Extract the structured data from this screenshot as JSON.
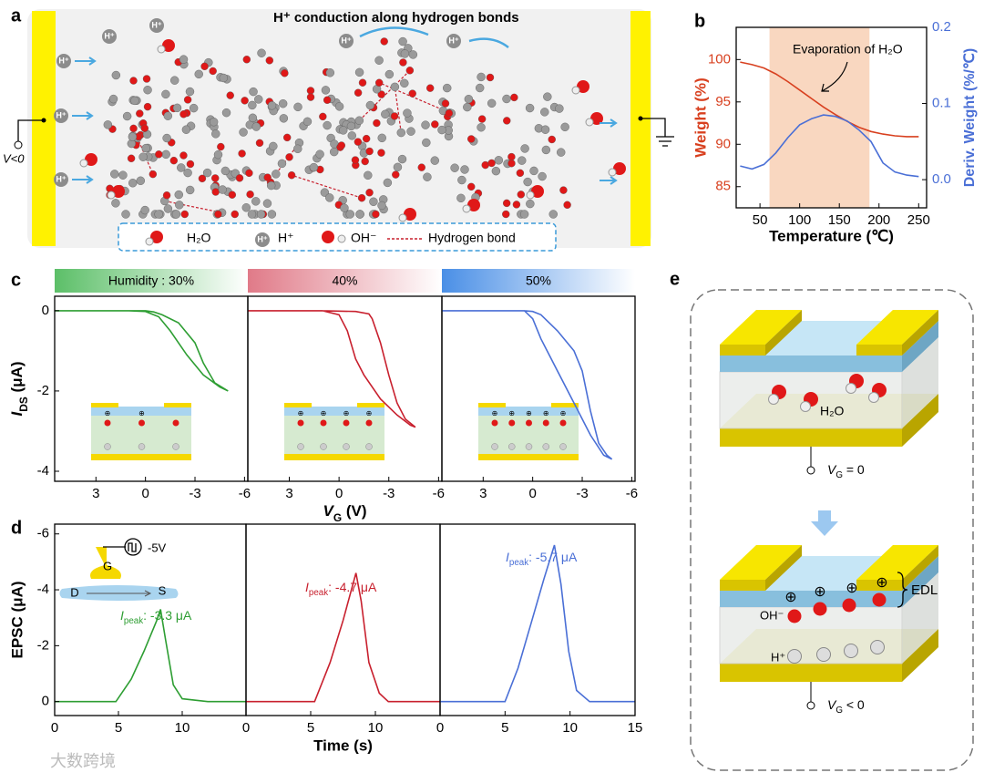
{
  "panel_labels": [
    "a",
    "b",
    "c",
    "d",
    "e"
  ],
  "panel_a": {
    "title": "H⁺ conduction along  hydrogen bonds",
    "voltage": "V<0",
    "proton_labels": [
      "H⁺",
      "H⁺",
      "H⁺",
      "H⁺",
      "H⁺",
      "H⁺",
      "H⁺",
      "H⁺"
    ],
    "legend": [
      "H₂O",
      "H⁺",
      "OH⁻",
      "Hydrogen bond"
    ]
  },
  "panel_d_inset": [
    "G",
    "D",
    "S",
    "-5V"
  ],
  "panel_e": {
    "top": {
      "molecule": "H₂O",
      "gate": [
        "V",
        "G",
        " = 0"
      ]
    },
    "bottom": {
      "layer": "EDL",
      "anion": "OH⁻",
      "cation": "H⁺",
      "gate": [
        "V",
        "G",
        " < 0"
      ]
    }
  },
  "watermark": "大数跨境",
  "chart_data": [
    {
      "type": "line",
      "xlabel": "Temperature (℃)",
      "ylabel": "Weight (%)",
      "y2label": "Deriv. Weight (%/℃)",
      "annotation": "Evaporation of H₂O",
      "shaded_region": [
        62,
        188
      ],
      "x": [
        25,
        40,
        55,
        70,
        85,
        100,
        115,
        130,
        145,
        160,
        175,
        190,
        205,
        220,
        235,
        250
      ],
      "series": [
        {
          "color": "#d8401f",
          "values": [
            99.7,
            99.4,
            99.0,
            98.3,
            97.4,
            96.4,
            95.4,
            94.4,
            93.5,
            92.7,
            92.0,
            91.5,
            91.2,
            91.0,
            90.9,
            90.9
          ]
        },
        {
          "color": "#4a6fd6",
          "axis": "y2",
          "values": [
            0.018,
            0.014,
            0.02,
            0.035,
            0.055,
            0.072,
            0.08,
            0.085,
            0.083,
            0.077,
            0.065,
            0.05,
            0.022,
            0.01,
            0.006,
            0.004
          ]
        }
      ],
      "xlim": [
        20,
        260
      ],
      "xticks": [
        50,
        100,
        150,
        200,
        250
      ],
      "ylim": [
        82.5,
        103.8
      ],
      "yticks": [
        85,
        90,
        95,
        100
      ],
      "y2lim": [
        -0.037,
        0.2
      ],
      "y2ticks": [
        {
          "value": 0,
          "label": "0.0"
        },
        0.1,
        0.2
      ]
    },
    {
      "type": "line",
      "header": "Humidity : 30%",
      "header_color": "#5cbf68",
      "color": "#2e9e33",
      "ylabel": [
        "I",
        "DS",
        " (μA)"
      ],
      "x": [
        5.5,
        1,
        0,
        -0.5,
        -1,
        -2,
        -3,
        -3.5,
        -4.2,
        -5,
        -4.5,
        -3.5,
        -2.5,
        -1.5,
        -0.8,
        0,
        1,
        5.5
      ],
      "values": [
        0,
        0,
        0,
        -0.03,
        -0.1,
        -0.3,
        -0.8,
        -1.3,
        -1.8,
        -2.0,
        -1.9,
        -1.6,
        -1.1,
        -0.5,
        -0.15,
        -0.02,
        0,
        0
      ],
      "xlim": [
        5.5,
        -6.2
      ],
      "xticks": [
        3,
        0,
        -3,
        -6
      ],
      "ylim": [
        -4.25,
        0.36
      ],
      "yticks": [
        0,
        -2,
        -4
      ]
    },
    {
      "type": "line",
      "header": "40%",
      "header_color": "#e07a88",
      "color": "#c8202e",
      "xlabel": [
        "V",
        "G",
        " (V)"
      ],
      "x": [
        5.5,
        1,
        -1,
        -1.8,
        -2,
        -2.5,
        -3,
        -3.5,
        -4,
        -4.6,
        -4.3,
        -3.5,
        -2.5,
        -1.5,
        -1,
        -0.5,
        0,
        1,
        5.5
      ],
      "values": [
        0,
        0,
        -0.02,
        -0.08,
        -0.2,
        -0.8,
        -1.6,
        -2.3,
        -2.7,
        -2.9,
        -2.85,
        -2.6,
        -2.2,
        -1.6,
        -1.2,
        -0.5,
        -0.1,
        0,
        0
      ],
      "xlim": [
        5.5,
        -6.2
      ],
      "xticks": [
        3,
        0,
        -3,
        -6
      ]
    },
    {
      "type": "line",
      "header": "50%",
      "header_color": "#4a8fe6",
      "color": "#4a6fd6",
      "x": [
        5.5,
        0.5,
        0,
        -0.5,
        -1.5,
        -2.5,
        -3,
        -3.5,
        -4,
        -4.5,
        -4.8,
        -4.3,
        -3.5,
        -2.5,
        -1.5,
        -0.5,
        0,
        0.5,
        5.5
      ],
      "values": [
        0,
        0,
        -0.02,
        -0.1,
        -0.5,
        -1.0,
        -1.5,
        -2.5,
        -3.3,
        -3.6,
        -3.7,
        -3.6,
        -3.1,
        -2.3,
        -1.5,
        -0.7,
        -0.2,
        0,
        0
      ],
      "xlim": [
        5.5,
        -6.2
      ],
      "xticks": [
        3,
        0,
        -3,
        -6
      ]
    },
    {
      "type": "line",
      "color": "#2e9e33",
      "ylabel": "EPSC (μA)",
      "annotation": [
        "I",
        "peak",
        ": -3.3 μA"
      ],
      "x": [
        0,
        4.8,
        6,
        7,
        8,
        8.3,
        8.7,
        9.3,
        10,
        12,
        15
      ],
      "values": [
        0,
        0,
        -0.8,
        -1.8,
        -2.9,
        -3.3,
        -2.2,
        -0.6,
        -0.1,
        0,
        0
      ],
      "xlim": [
        0,
        15
      ],
      "xticks": [
        0,
        5,
        10
      ],
      "ylim": [
        0.5,
        -6.35
      ],
      "yticks": [
        0,
        -2,
        -4,
        -6
      ]
    },
    {
      "type": "line",
      "color": "#c8202e",
      "xlabel": "Time (s)",
      "annotation": [
        "I",
        "peak",
        ": -4.7 μA"
      ],
      "x": [
        0,
        5.3,
        6.5,
        7.5,
        8.5,
        8.9,
        9.5,
        10.3,
        11,
        15
      ],
      "values": [
        0,
        0,
        -1.4,
        -2.9,
        -4.6,
        -3.6,
        -1.4,
        -0.3,
        0,
        0
      ],
      "xlim": [
        0,
        15
      ],
      "xticks": [
        0,
        5,
        10
      ],
      "ylim": [
        0.5,
        -6.35
      ]
    },
    {
      "type": "line",
      "color": "#4a6fd6",
      "annotation": [
        "I",
        "peak",
        ": -5.7 μA"
      ],
      "x": [
        0,
        5,
        6,
        7,
        8,
        8.8,
        9.3,
        9.9,
        10.5,
        11.5,
        15
      ],
      "values": [
        0,
        0,
        -1.2,
        -2.8,
        -4.4,
        -5.6,
        -4.2,
        -1.8,
        -0.4,
        0,
        0
      ],
      "xlim": [
        0,
        15
      ],
      "xticks": [
        0,
        5,
        10,
        15
      ],
      "ylim": [
        0.5,
        -6.35
      ]
    }
  ]
}
